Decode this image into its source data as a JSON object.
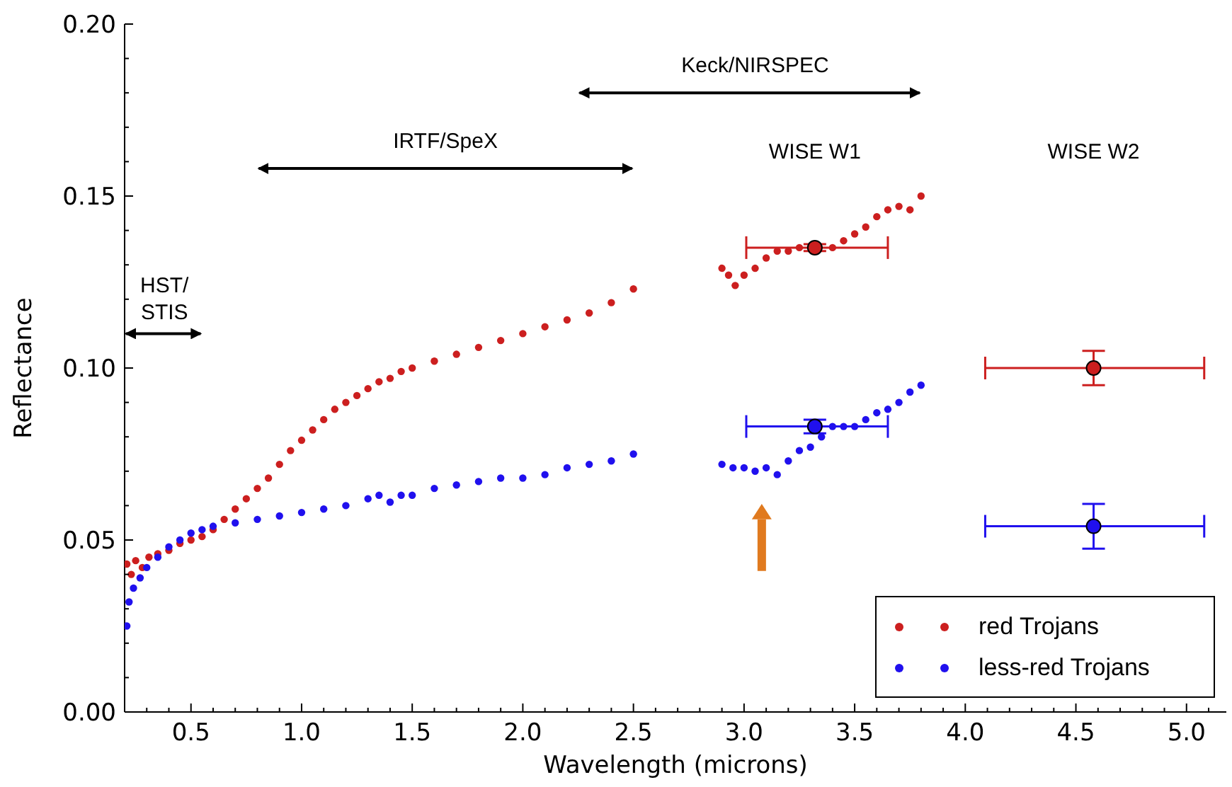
{
  "chart_data": {
    "type": "scatter",
    "xlabel": "Wavelength (microns)",
    "ylabel": "Reflectance",
    "xlim": [
      0.2,
      5.18
    ],
    "ylim": [
      0,
      0.2
    ],
    "xticks": [
      {
        "value": 0.2,
        "label": null
      },
      {
        "value": 0.3,
        "label": null
      },
      {
        "value": 0.4,
        "label": null
      },
      {
        "value": 0.5,
        "label": "0.5"
      },
      {
        "value": 0.6,
        "label": null
      },
      {
        "value": 0.7,
        "label": null
      },
      {
        "value": 0.8,
        "label": null
      },
      {
        "value": 0.9,
        "label": null
      },
      {
        "value": 1.0,
        "label": "1.0"
      },
      {
        "value": 1.1,
        "label": null
      },
      {
        "value": 1.2,
        "label": null
      },
      {
        "value": 1.3,
        "label": null
      },
      {
        "value": 1.4,
        "label": null
      },
      {
        "value": 1.5,
        "label": "1.5"
      },
      {
        "value": 1.6,
        "label": null
      },
      {
        "value": 1.7,
        "label": null
      },
      {
        "value": 1.8,
        "label": null
      },
      {
        "value": 1.9,
        "label": null
      },
      {
        "value": 2.0,
        "label": "2.0"
      },
      {
        "value": 2.1,
        "label": null
      },
      {
        "value": 2.2,
        "label": null
      },
      {
        "value": 2.3,
        "label": null
      },
      {
        "value": 2.4,
        "label": null
      },
      {
        "value": 2.5,
        "label": "2.5"
      },
      {
        "value": 2.6,
        "label": null
      },
      {
        "value": 2.7,
        "label": null
      },
      {
        "value": 2.8,
        "label": null
      },
      {
        "value": 2.9,
        "label": null
      },
      {
        "value": 3.0,
        "label": "3.0"
      },
      {
        "value": 3.1,
        "label": null
      },
      {
        "value": 3.2,
        "label": null
      },
      {
        "value": 3.3,
        "label": null
      },
      {
        "value": 3.4,
        "label": null
      },
      {
        "value": 3.5,
        "label": "3.5"
      },
      {
        "value": 3.6,
        "label": null
      },
      {
        "value": 3.7,
        "label": null
      },
      {
        "value": 3.8,
        "label": null
      },
      {
        "value": 3.9,
        "label": null
      },
      {
        "value": 4.0,
        "label": "4.0"
      },
      {
        "value": 4.1,
        "label": null
      },
      {
        "value": 4.2,
        "label": null
      },
      {
        "value": 4.3,
        "label": null
      },
      {
        "value": 4.4,
        "label": null
      },
      {
        "value": 4.5,
        "label": "4.5"
      },
      {
        "value": 4.6,
        "label": null
      },
      {
        "value": 4.7,
        "label": null
      },
      {
        "value": 4.8,
        "label": null
      },
      {
        "value": 4.9,
        "label": null
      },
      {
        "value": 5.0,
        "label": "5.0"
      },
      {
        "value": 5.1,
        "label": null
      }
    ],
    "yticks": [
      {
        "value": 0,
        "label": "0.00"
      },
      {
        "value": 0.01,
        "label": null
      },
      {
        "value": 0.02,
        "label": null
      },
      {
        "value": 0.03,
        "label": null
      },
      {
        "value": 0.04,
        "label": null
      },
      {
        "value": 0.05,
        "label": "0.05"
      },
      {
        "value": 0.06,
        "label": null
      },
      {
        "value": 0.07,
        "label": null
      },
      {
        "value": 0.08,
        "label": null
      },
      {
        "value": 0.09,
        "label": null
      },
      {
        "value": 0.1,
        "label": "0.10"
      },
      {
        "value": 0.11,
        "label": null
      },
      {
        "value": 0.12,
        "label": null
      },
      {
        "value": 0.13,
        "label": null
      },
      {
        "value": 0.14,
        "label": null
      },
      {
        "value": 0.15,
        "label": "0.15"
      },
      {
        "value": 0.16,
        "label": null
      },
      {
        "value": 0.17,
        "label": null
      },
      {
        "value": 0.18,
        "label": null
      },
      {
        "value": 0.19,
        "label": null
      },
      {
        "value": 0.2,
        "label": "0.20"
      }
    ],
    "grid": false,
    "legend": "bottom right",
    "marker": "circle",
    "annotations": [
      "HST/\nSTIS",
      "IRTF/SpeX",
      "Keck/NIRSPEC",
      "WISE W1",
      "WISE W2"
    ],
    "series": [
      {
        "name": "red Trojans",
        "color": "#cc1f1f",
        "x": [
          0.21,
          0.23,
          0.25,
          0.28,
          0.31,
          0.35,
          0.4,
          0.45,
          0.5,
          0.55,
          0.6,
          0.65,
          0.7,
          0.75,
          0.8,
          0.85,
          0.9,
          0.95,
          1.0,
          1.05,
          1.1,
          1.15,
          1.2,
          1.25,
          1.3,
          1.35,
          1.4,
          1.45,
          1.5,
          1.6,
          1.7,
          1.8,
          1.9,
          2.0,
          2.1,
          2.2,
          2.3,
          2.4,
          2.5,
          2.9,
          2.93,
          2.96,
          3.0,
          3.05,
          3.1,
          3.15,
          3.2,
          3.25,
          3.4,
          3.45,
          3.5,
          3.55,
          3.6,
          3.65,
          3.7,
          3.75,
          3.8
        ],
        "values": [
          0.043,
          0.04,
          0.044,
          0.042,
          0.045,
          0.046,
          0.047,
          0.049,
          0.05,
          0.051,
          0.053,
          0.056,
          0.059,
          0.062,
          0.065,
          0.068,
          0.072,
          0.076,
          0.079,
          0.082,
          0.085,
          0.088,
          0.09,
          0.092,
          0.094,
          0.096,
          0.097,
          0.099,
          0.1,
          0.102,
          0.104,
          0.106,
          0.108,
          0.11,
          0.112,
          0.114,
          0.116,
          0.119,
          0.123,
          0.129,
          0.127,
          0.124,
          0.127,
          0.129,
          0.132,
          0.134,
          0.134,
          0.135,
          0.135,
          0.137,
          0.139,
          0.141,
          0.144,
          0.146,
          0.147,
          0.146,
          0.15
        ]
      },
      {
        "name": "less-red Trojans",
        "color": "#2010ee",
        "x": [
          0.21,
          0.22,
          0.24,
          0.27,
          0.3,
          0.35,
          0.4,
          0.45,
          0.5,
          0.55,
          0.6,
          0.7,
          0.8,
          0.9,
          1.0,
          1.1,
          1.2,
          1.3,
          1.35,
          1.4,
          1.45,
          1.5,
          1.6,
          1.7,
          1.8,
          1.9,
          2.0,
          2.1,
          2.2,
          2.3,
          2.4,
          2.5,
          2.9,
          2.95,
          3.0,
          3.05,
          3.1,
          3.15,
          3.2,
          3.25,
          3.3,
          3.35,
          3.4,
          3.45,
          3.5,
          3.55,
          3.6,
          3.65,
          3.7,
          3.75,
          3.8
        ],
        "values": [
          0.025,
          0.032,
          0.036,
          0.039,
          0.042,
          0.045,
          0.048,
          0.05,
          0.052,
          0.053,
          0.054,
          0.055,
          0.056,
          0.057,
          0.058,
          0.059,
          0.06,
          0.062,
          0.063,
          0.061,
          0.063,
          0.063,
          0.065,
          0.066,
          0.067,
          0.068,
          0.068,
          0.069,
          0.071,
          0.072,
          0.073,
          0.075,
          0.072,
          0.071,
          0.071,
          0.07,
          0.071,
          0.069,
          0.073,
          0.076,
          0.077,
          0.08,
          0.083,
          0.083,
          0.083,
          0.085,
          0.087,
          0.088,
          0.09,
          0.093,
          0.095
        ]
      },
      {
        "color": "#cc1f1f",
        "x": [
          3.32,
          4.58
        ],
        "values": [
          0.135,
          0.1
        ],
        "errors": [
          0.001,
          0.005
        ],
        "xerrors": [
          [
            3.01,
            3.65
          ],
          [
            4.09,
            5.08
          ]
        ]
      },
      {
        "color": "#2010ee",
        "x": [
          3.32,
          4.58
        ],
        "values": [
          0.083,
          0.054
        ],
        "errors": [
          0.002,
          0.0065
        ],
        "xerrors": [
          [
            3.01,
            3.65
          ],
          [
            4.09,
            5.08
          ]
        ]
      }
    ]
  }
}
